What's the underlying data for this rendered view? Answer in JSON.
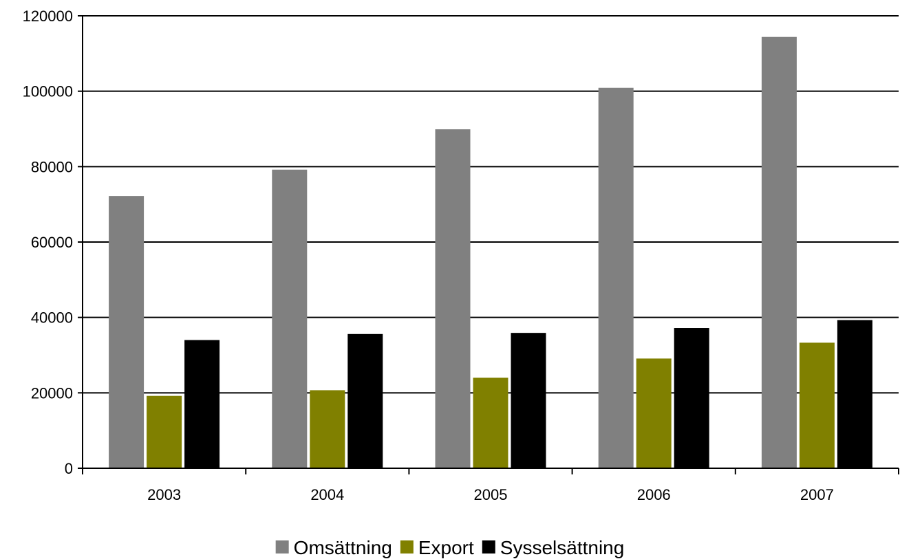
{
  "chart_data": {
    "type": "bar",
    "categories": [
      "2003",
      "2004",
      "2005",
      "2006",
      "2007"
    ],
    "series": [
      {
        "name": "Omsättning",
        "color": "#808080",
        "values": [
          72200,
          79200,
          89900,
          100900,
          114400
        ]
      },
      {
        "name": "Export",
        "color": "#808000",
        "values": [
          19200,
          20700,
          24000,
          29100,
          33300
        ]
      },
      {
        "name": "Sysselsättning",
        "color": "#000000",
        "values": [
          34000,
          35600,
          35900,
          37200,
          39300
        ]
      }
    ],
    "y_ticks": [
      "0",
      "20000",
      "40000",
      "60000",
      "80000",
      "100000",
      "120000"
    ],
    "ylim": [
      0,
      120000
    ],
    "grid": true,
    "legend_position": "bottom"
  }
}
